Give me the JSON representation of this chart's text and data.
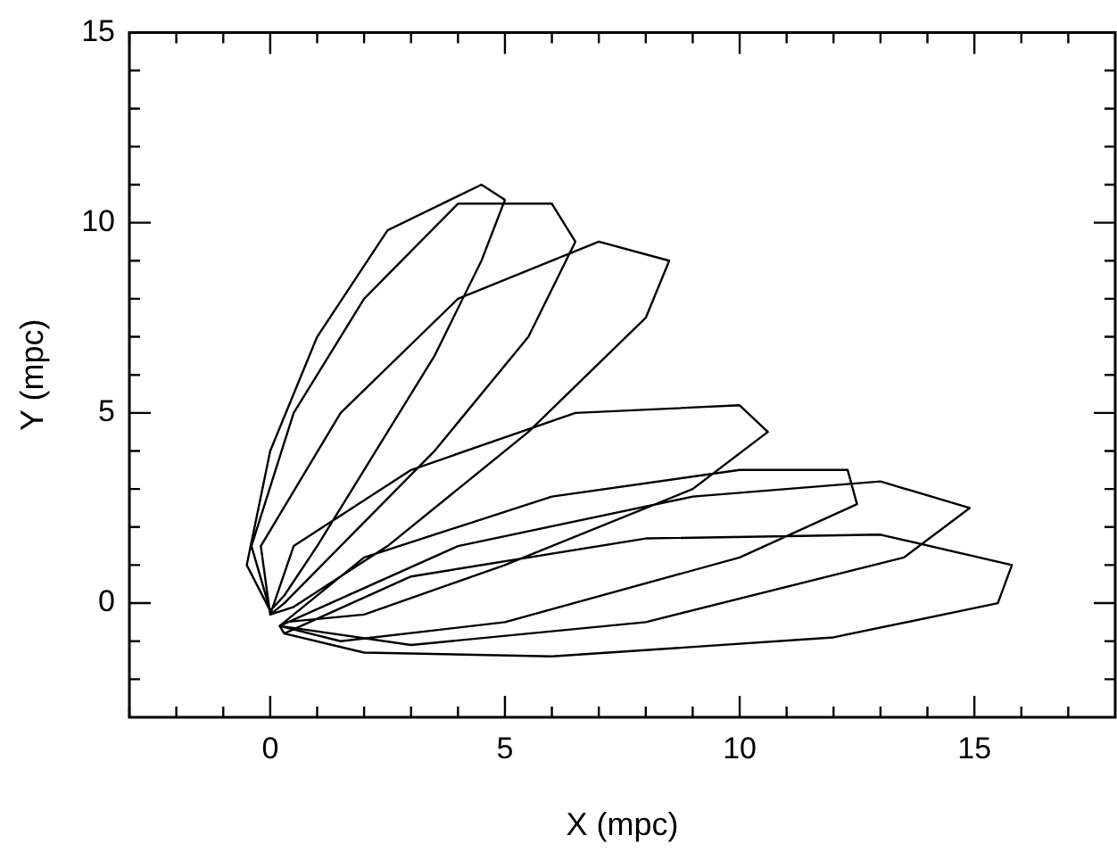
{
  "chart_data": {
    "type": "line",
    "xlabel": "X (mpc)",
    "ylabel": "Y (mpc)",
    "xlim": [
      -3,
      18
    ],
    "ylim": [
      -3,
      15
    ],
    "xticks": [
      {
        "value": -3,
        "label": null
      },
      {
        "value": -2,
        "label": null
      },
      {
        "value": -1,
        "label": null
      },
      0,
      {
        "value": 1,
        "label": null
      },
      {
        "value": 2,
        "label": null
      },
      {
        "value": 3,
        "label": null
      },
      {
        "value": 4,
        "label": null
      },
      5,
      {
        "value": 6,
        "label": null
      },
      {
        "value": 7,
        "label": null
      },
      {
        "value": 8,
        "label": null
      },
      {
        "value": 9,
        "label": null
      },
      10,
      {
        "value": 11,
        "label": null
      },
      {
        "value": 12,
        "label": null
      },
      {
        "value": 13,
        "label": null
      },
      {
        "value": 14,
        "label": null
      },
      15,
      {
        "value": 16,
        "label": null
      },
      {
        "value": 17,
        "label": null
      }
    ],
    "yticks": [
      {
        "value": -2,
        "label": null
      },
      {
        "value": -1,
        "label": null
      },
      0,
      {
        "value": 1,
        "label": null
      },
      {
        "value": 2,
        "label": null
      },
      {
        "value": 3,
        "label": null
      },
      {
        "value": 4,
        "label": null
      },
      5,
      {
        "value": 6,
        "label": null
      },
      {
        "value": 7,
        "label": null
      },
      {
        "value": 8,
        "label": null
      },
      {
        "value": 9,
        "label": null
      },
      10,
      {
        "value": 11,
        "label": null
      },
      {
        "value": 12,
        "label": null
      },
      {
        "value": 13,
        "label": null
      },
      {
        "value": 14,
        "label": null
      },
      15
    ],
    "grid": false,
    "legend": false,
    "marker": "none",
    "line_style": "solid",
    "series": [
      {
        "color": "#000000",
        "x": [
          0,
          -0.5,
          0,
          1,
          2.5,
          4.5,
          5,
          4.5,
          3.5,
          2,
          1,
          0.3,
          0,
          -0.4,
          0.5,
          2,
          4,
          6,
          6.5,
          5.5,
          3.5,
          1.5,
          0.3,
          0,
          -0.2,
          1.5,
          4,
          7,
          8.5,
          8,
          5.5,
          2.5,
          0.5,
          0,
          0.5,
          3,
          6.5,
          10,
          10.6,
          9,
          5,
          2,
          0.3,
          0.2,
          2,
          6,
          10,
          12.3,
          12.5,
          10,
          5,
          1.5,
          0.2,
          4,
          9,
          13,
          14.9,
          13.5,
          8,
          3,
          0.2,
          0.3,
          3,
          8,
          13,
          15.8,
          15.5,
          12,
          6,
          2,
          0.3
        ],
        "values": [
          -0.2,
          1,
          4,
          7,
          9.8,
          11,
          10.6,
          9,
          6.5,
          3.5,
          1.5,
          0.2,
          -0.2,
          1.5,
          5,
          8,
          10.5,
          10.5,
          9.5,
          7,
          4,
          1.5,
          0,
          -0.3,
          1.5,
          5,
          8,
          9.5,
          9,
          7.5,
          4.5,
          1.5,
          -0.1,
          -0.3,
          1.5,
          3.5,
          5,
          5.2,
          4.5,
          3,
          1,
          -0.3,
          -0.5,
          -0.6,
          1.2,
          2.8,
          3.5,
          3.5,
          2.6,
          1.2,
          -0.5,
          -1,
          -0.6,
          1.5,
          2.8,
          3.2,
          2.5,
          1.2,
          -0.5,
          -1.1,
          -0.6,
          -0.8,
          0.7,
          1.7,
          1.8,
          1,
          0,
          -0.9,
          -1.4,
          -1.3,
          -0.8
        ]
      }
    ]
  }
}
